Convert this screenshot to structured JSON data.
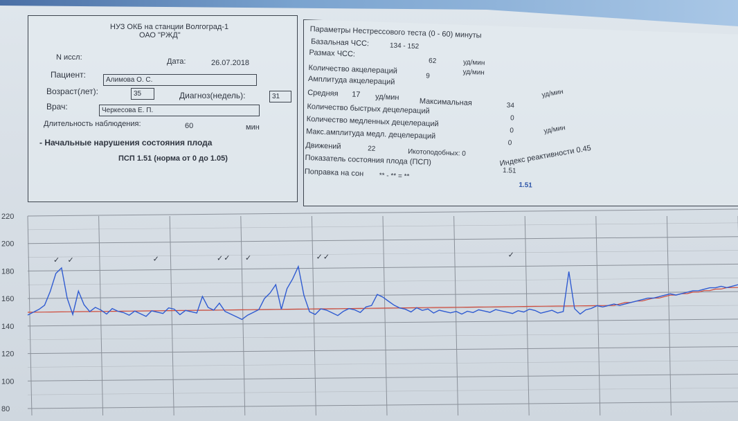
{
  "header": {
    "org_line1": "НУЗ ОКБ на станции Волгоград-1",
    "org_line2": "ОАО \"РЖД\""
  },
  "patient": {
    "n_label": "N иссл:",
    "date_label": "Дата:",
    "date_value": "26.07.2018",
    "patient_label": "Пациент:",
    "patient_value": "Алимова О. С.",
    "age_label": "Возраст(лет):",
    "age_value": "35",
    "diagnosis_label": "Диагноз(недель):",
    "diagnosis_value": "31",
    "doctor_label": "Врач:",
    "doctor_value": "Черкесова Е. П.",
    "duration_label": "Длительность наблюдения:",
    "duration_value": "60",
    "duration_unit": "мин",
    "conclusion": "- Начальные нарушения состояния плода",
    "psp_norm": "ПСП 1.51 (норма от 0 до 1.05)"
  },
  "params": {
    "title": "Параметры Нестрессового теста (0 - 60) минуты",
    "basal_label": "Базальная ЧСС:",
    "basal_value": "134 - 152",
    "range_label": "Размах ЧСС:",
    "range_value": "62",
    "unit_bpm": "уд/мин",
    "unit_bpm2": "уд/мин",
    "accel_count_label": "Количество акцелераций",
    "accel_count_value": "9",
    "accel_amp_label": "Амплитуда акцелераций",
    "avg_label": "Средняя",
    "avg_value": "17",
    "avg_unit": "уд/мин",
    "max_label": "Максимальная",
    "max_value": "34",
    "max_unit": "уд/мин",
    "fast_decel_label": "Количество быстрых децелераций",
    "fast_decel_value": "0",
    "slow_decel_label": "Количество медленных децелераций",
    "slow_decel_value": "0",
    "max_decel_amp_label": "Макс.амплитуда медл. децелераций",
    "max_decel_amp_value": "0",
    "max_decel_amp_unit": "уд/мин",
    "movements_label": "Движений",
    "movements_value": "22",
    "ikoto_label": "Икотоподобных: 0",
    "reactivity_label": "Индекс реактивности 0.45",
    "state_label": "Показатель состояния плода (ПСП)",
    "state_value": "1.51",
    "sleep_label": "Поправка на сон",
    "sleep_value": "** - ** = **",
    "final_value": "1.51"
  },
  "chart_data": {
    "type": "line",
    "title": "",
    "xlabel": "",
    "ylabel": "",
    "ylim": [
      80,
      220
    ],
    "yticks": [
      "220",
      "200",
      "180",
      "160",
      "140",
      "120",
      "100",
      "80"
    ],
    "series": [
      {
        "values": [
          148,
          150,
          152,
          155,
          165,
          178,
          182,
          160,
          148,
          165,
          155,
          150,
          153,
          151,
          148,
          152,
          150,
          149,
          147,
          150,
          148,
          146,
          150,
          149,
          148,
          152,
          151,
          147,
          150,
          149,
          148,
          160,
          152,
          150,
          155,
          149,
          147,
          145,
          143,
          146,
          148,
          150,
          158,
          162,
          168,
          150,
          165,
          172,
          181,
          160,
          148,
          146,
          150,
          149,
          147,
          145,
          148,
          150,
          149,
          147,
          151,
          152,
          160,
          158,
          155,
          152,
          150,
          149,
          147,
          150,
          148,
          149,
          146,
          148,
          147,
          146,
          147,
          145,
          147,
          146,
          148,
          147,
          146,
          148,
          147,
          146,
          145,
          147,
          146,
          148,
          147,
          145,
          146,
          147,
          145,
          146,
          175,
          148,
          144,
          147,
          148,
          150,
          149,
          150,
          151,
          150,
          151,
          152,
          153,
          154,
          155,
          155,
          156,
          157,
          158,
          157,
          158,
          159,
          160,
          160,
          161,
          162,
          162,
          163,
          162,
          163,
          164
        ]
      },
      {
        "values": [
          150,
          150,
          150,
          150,
          150,
          150,
          150,
          150,
          150,
          150,
          150,
          150,
          150,
          150,
          150,
          150,
          150,
          150,
          150,
          150,
          150,
          150,
          150,
          150,
          150,
          150,
          150,
          150,
          150,
          150,
          150,
          150,
          150,
          150,
          150,
          150,
          150,
          150,
          150,
          150,
          150,
          150,
          150,
          150,
          150,
          150,
          150,
          150,
          150,
          150,
          150,
          150,
          150,
          150,
          150,
          150,
          150,
          150,
          150,
          150,
          150,
          150,
          150,
          150,
          150,
          150,
          150,
          150,
          150,
          150,
          150,
          150,
          150,
          150,
          150,
          150,
          150,
          150,
          150,
          150,
          150,
          150,
          150,
          150,
          150,
          150,
          150,
          150,
          150,
          150,
          150,
          150,
          150,
          150,
          150,
          150,
          150,
          150,
          150,
          150,
          150,
          150,
          150,
          150,
          150,
          151,
          152,
          152,
          153,
          153,
          154,
          155,
          155,
          156,
          157,
          157,
          158,
          158,
          159,
          159,
          160,
          160,
          161,
          161,
          162,
          162,
          162
        ]
      }
    ],
    "accel_marks": [
      0.04,
      0.06,
      0.18,
      0.27,
      0.28,
      0.31,
      0.41,
      0.42,
      0.68
    ],
    "colors": {
      "trace": "#2f5bd1",
      "baseline": "#d04a3a"
    }
  }
}
